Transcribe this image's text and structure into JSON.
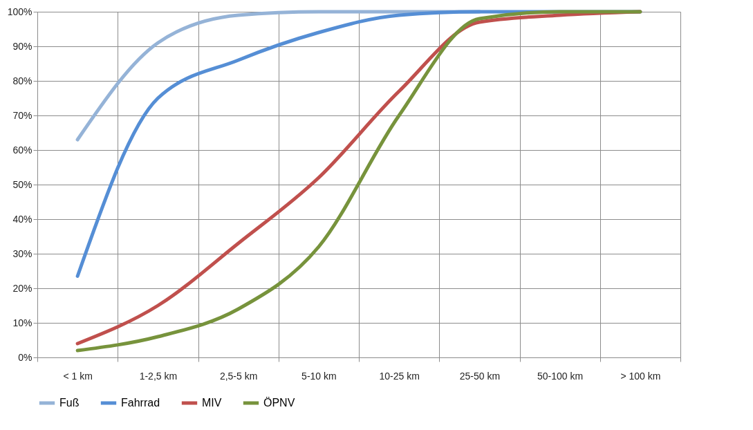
{
  "chart_data": {
    "type": "line",
    "categories": [
      "< 1 km",
      "1-2,5 km",
      "2,5-5 km",
      "5-10 km",
      "10-25 km",
      "25-50 km",
      "50-100 km",
      "> 100 km"
    ],
    "series": [
      {
        "name": "Fuß",
        "color": "#95b3d7",
        "values": [
          63,
          91,
          99,
          100,
          100,
          100,
          null,
          null
        ]
      },
      {
        "name": "Fahrrad",
        "color": "#558ed5",
        "values": [
          23.5,
          75,
          86,
          94,
          99,
          100,
          100,
          100
        ]
      },
      {
        "name": "MIV",
        "color": "#c0504d",
        "values": [
          4,
          15,
          33,
          52,
          77,
          97,
          99,
          100
        ]
      },
      {
        "name": "ÖPNV",
        "color": "#77933c",
        "values": [
          2,
          6,
          14,
          32,
          70,
          98,
          100,
          100
        ]
      }
    ],
    "ylim": [
      0,
      100
    ],
    "yticks": [
      {
        "value": 0,
        "label": "0%"
      },
      {
        "value": 10,
        "label": "10%"
      },
      {
        "value": 20,
        "label": "20%"
      },
      {
        "value": 30,
        "label": "30%"
      },
      {
        "value": 40,
        "label": "40%"
      },
      {
        "value": 50,
        "label": "50%"
      },
      {
        "value": 60,
        "label": "60%"
      },
      {
        "value": 70,
        "label": "70%"
      },
      {
        "value": 80,
        "label": "80%"
      },
      {
        "value": 90,
        "label": "90%"
      },
      {
        "value": 100,
        "label": "100%"
      }
    ],
    "grid": true,
    "legend": "bottom",
    "marker": "none",
    "line_style": "solid"
  }
}
